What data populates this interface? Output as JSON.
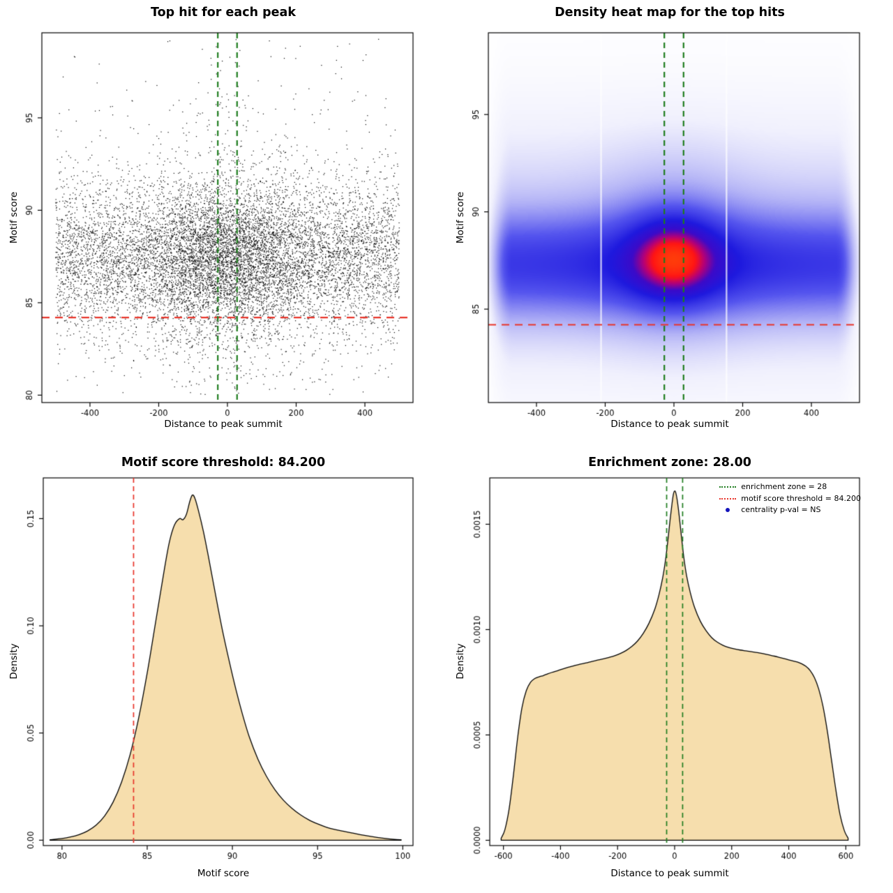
{
  "colors": {
    "red": "#e8342a",
    "green": "#1f7d1f",
    "blue": "#1414bb",
    "density_fill": "#f6dead",
    "line": "#000000"
  },
  "chart_data": [
    {
      "id": "top_hits_scatter",
      "type": "scatter",
      "title": "Top hit for each peak",
      "xlabel": "Distance to peak summit",
      "ylabel": "Motif score",
      "xlim": [
        -540,
        540
      ],
      "ylim": [
        79.6,
        99.6
      ],
      "xtick_values": [
        -400,
        -200,
        0,
        200,
        400
      ],
      "xtick_labels": [
        "-400",
        "-200",
        "0",
        "200",
        "400"
      ],
      "ytick_values": [
        80,
        85,
        90,
        95
      ],
      "ytick_labels": [
        "80",
        "85",
        "90",
        "95"
      ],
      "n_points": 11000,
      "seed": 42,
      "x_data_range": [
        -500,
        500
      ],
      "y_center": 87.45,
      "y_spread": 1.9,
      "motif_score_threshold": 84.2,
      "enrichment_zone": [
        -28,
        28
      ]
    },
    {
      "id": "top_hits_heatmap",
      "type": "heatmap",
      "title": "Density heat map for the top hits",
      "xlabel": "Distance to peak summit",
      "ylabel": "Motif score",
      "xlim": [
        -540,
        540
      ],
      "ylim": [
        80.2,
        99.2
      ],
      "xtick_values": [
        -400,
        -200,
        0,
        200,
        400
      ],
      "xtick_labels": [
        "-400",
        "-200",
        "0",
        "200",
        "400"
      ],
      "ytick_values": [
        85,
        90,
        95
      ],
      "ytick_labels": [
        "85",
        "90",
        "95"
      ],
      "band_center_y": 87.25,
      "core_center_x": 0,
      "core_center_y": 87.6,
      "motif_score_threshold": 84.2,
      "enrichment_zone": [
        -28,
        28
      ],
      "white_streaks": [
        -212,
        153
      ]
    },
    {
      "id": "motif_score_density",
      "type": "density",
      "title": "Motif score threshold: 84.200",
      "xlabel": "Motif score",
      "ylabel": "Density",
      "xlim": [
        78.9,
        100.6
      ],
      "ylim": [
        -0.0025,
        0.169
      ],
      "xtick_values": [
        80,
        85,
        90,
        95,
        100
      ],
      "xtick_labels": [
        "80",
        "85",
        "90",
        "95",
        "100"
      ],
      "ytick_values": [
        0.0,
        0.05,
        0.1,
        0.15
      ],
      "ytick_labels": [
        "0.00",
        "0.05",
        "0.10",
        "0.15"
      ],
      "threshold_x": 84.2,
      "curve": [
        [
          79.3,
          0.0002
        ],
        [
          80,
          0.0008
        ],
        [
          80.5,
          0.0015
        ],
        [
          81,
          0.0026
        ],
        [
          81.5,
          0.0043
        ],
        [
          82,
          0.007
        ],
        [
          82.5,
          0.0113
        ],
        [
          83,
          0.0178
        ],
        [
          83.5,
          0.0272
        ],
        [
          84,
          0.04
        ],
        [
          84.5,
          0.057
        ],
        [
          85,
          0.078
        ],
        [
          85.5,
          0.102
        ],
        [
          86,
          0.126
        ],
        [
          86.3,
          0.139
        ],
        [
          86.6,
          0.147
        ],
        [
          86.9,
          0.15
        ],
        [
          87.1,
          0.1495
        ],
        [
          87.3,
          0.152
        ],
        [
          87.5,
          0.158
        ],
        [
          87.65,
          0.161
        ],
        [
          87.8,
          0.1595
        ],
        [
          88,
          0.154
        ],
        [
          88.3,
          0.144
        ],
        [
          88.6,
          0.132
        ],
        [
          89,
          0.115
        ],
        [
          89.4,
          0.0985
        ],
        [
          89.8,
          0.084
        ],
        [
          90.2,
          0.0705
        ],
        [
          90.6,
          0.0585
        ],
        [
          91,
          0.048
        ],
        [
          91.5,
          0.0378
        ],
        [
          92,
          0.0298
        ],
        [
          92.5,
          0.0235
        ],
        [
          93,
          0.0186
        ],
        [
          93.5,
          0.0148
        ],
        [
          94,
          0.0118
        ],
        [
          94.5,
          0.0094
        ],
        [
          95,
          0.0076
        ],
        [
          95.5,
          0.0061
        ],
        [
          96,
          0.005
        ],
        [
          96.5,
          0.0042
        ],
        [
          97,
          0.0034
        ],
        [
          97.5,
          0.0026
        ],
        [
          98,
          0.0019
        ],
        [
          98.5,
          0.0013
        ],
        [
          99,
          0.0008
        ],
        [
          99.5,
          0.0004
        ],
        [
          99.9,
          0.0002
        ]
      ]
    },
    {
      "id": "distance_density",
      "type": "density",
      "title": "Enrichment zone: 28.00",
      "xlabel": "Distance to peak summit",
      "ylabel": "Density",
      "xlim": [
        -648,
        648
      ],
      "ylim": [
        -2.5e-05,
        0.00172
      ],
      "xtick_values": [
        -600,
        -400,
        -200,
        0,
        200,
        400,
        600
      ],
      "xtick_labels": [
        "-600",
        "-400",
        "-200",
        "0",
        "200",
        "400",
        "600"
      ],
      "ytick_values": [
        0.0,
        0.0005,
        0.001,
        0.0015
      ],
      "ytick_labels": [
        "0.0000",
        "0.0005",
        "0.0010",
        "0.0015"
      ],
      "zone_lines": [
        -28,
        28
      ],
      "curve": [
        [
          -608,
          1e-05
        ],
        [
          -595,
          5e-05
        ],
        [
          -580,
          0.00015
        ],
        [
          -565,
          0.00031
        ],
        [
          -550,
          0.00049
        ],
        [
          -535,
          0.00063
        ],
        [
          -520,
          0.00071
        ],
        [
          -505,
          0.00075
        ],
        [
          -490,
          0.000768
        ],
        [
          -475,
          0.000776
        ],
        [
          -460,
          0.000782
        ],
        [
          -445,
          0.00079
        ],
        [
          -430,
          0.000797
        ],
        [
          -410,
          0.000805
        ],
        [
          -390,
          0.000814
        ],
        [
          -370,
          0.000822
        ],
        [
          -350,
          0.00083
        ],
        [
          -330,
          0.000836
        ],
        [
          -310,
          0.000842
        ],
        [
          -290,
          0.000849
        ],
        [
          -270,
          0.000855
        ],
        [
          -250,
          0.000861
        ],
        [
          -230,
          0.000868
        ],
        [
          -210,
          0.000876
        ],
        [
          -190,
          0.000887
        ],
        [
          -170,
          0.000901
        ],
        [
          -150,
          0.00092
        ],
        [
          -130,
          0.000946
        ],
        [
          -110,
          0.000982
        ],
        [
          -90,
          0.00103
        ],
        [
          -70,
          0.001095
        ],
        [
          -55,
          0.001165
        ],
        [
          -42,
          0.001245
        ],
        [
          -32,
          0.00133
        ],
        [
          -24,
          0.00142
        ],
        [
          -16,
          0.00152
        ],
        [
          -9,
          0.0016
        ],
        [
          -4,
          0.001645
        ],
        [
          0,
          0.001658
        ],
        [
          4,
          0.00165
        ],
        [
          9,
          0.001615
        ],
        [
          16,
          0.00154
        ],
        [
          24,
          0.00144
        ],
        [
          32,
          0.001345
        ],
        [
          42,
          0.001255
        ],
        [
          55,
          0.001175
        ],
        [
          70,
          0.001105
        ],
        [
          90,
          0.00104
        ],
        [
          110,
          0.000995
        ],
        [
          130,
          0.000962
        ],
        [
          150,
          0.00094
        ],
        [
          170,
          0.000925
        ],
        [
          190,
          0.000915
        ],
        [
          210,
          0.000908
        ],
        [
          230,
          0.000903
        ],
        [
          250,
          0.000899
        ],
        [
          270,
          0.000895
        ],
        [
          290,
          0.000891
        ],
        [
          310,
          0.000886
        ],
        [
          330,
          0.00088
        ],
        [
          350,
          0.000874
        ],
        [
          370,
          0.000867
        ],
        [
          390,
          0.00086
        ],
        [
          410,
          0.000853
        ],
        [
          430,
          0.000846
        ],
        [
          445,
          0.000838
        ],
        [
          460,
          0.000826
        ],
        [
          475,
          0.000806
        ],
        [
          490,
          0.000772
        ],
        [
          505,
          0.000718
        ],
        [
          520,
          0.000636
        ],
        [
          535,
          0.00052
        ],
        [
          550,
          0.00038
        ],
        [
          565,
          0.00024
        ],
        [
          580,
          0.00012
        ],
        [
          595,
          4.5e-05
        ],
        [
          608,
          1e-05
        ]
      ],
      "legend": {
        "items": [
          {
            "label": "enrichment zone = 28",
            "color": "#1f7d1f",
            "marker": "dotted-line"
          },
          {
            "label": "motif score threshold = 84.200",
            "color": "#e8342a",
            "marker": "dotted-line"
          },
          {
            "label": "centrality p-val = NS",
            "color": "#1414bb",
            "marker": "point"
          }
        ]
      }
    }
  ]
}
